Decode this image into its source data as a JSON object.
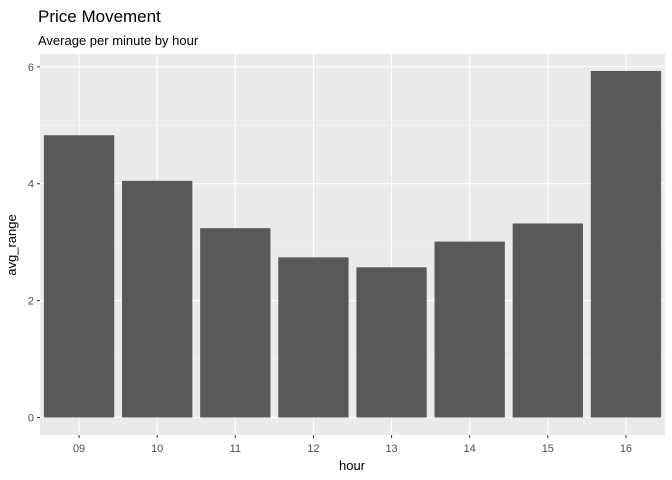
{
  "chart_data": {
    "type": "bar",
    "title": "Price Movement",
    "subtitle": "Average per minute by hour",
    "xlabel": "hour",
    "ylabel": "avg_range",
    "categories": [
      "09",
      "10",
      "11",
      "12",
      "13",
      "14",
      "15",
      "16"
    ],
    "values": [
      4.83,
      4.05,
      3.24,
      2.74,
      2.57,
      3.01,
      3.32,
      5.93
    ],
    "ylim": [
      -0.3,
      6.22
    ],
    "yticks": [
      0,
      2,
      4,
      6
    ],
    "grid": true,
    "legend": "none",
    "colors": {
      "bar": "#595959",
      "panel": "#ebebeb",
      "grid_major": "#ffffff",
      "grid_minor": "#f5f5f5",
      "tick_text": "#4d4d4d",
      "tick_mark": "#333333"
    }
  }
}
